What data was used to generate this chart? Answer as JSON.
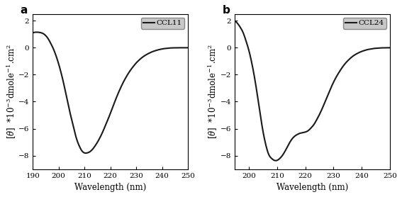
{
  "panel_a": {
    "label": "a",
    "legend_label": "CCL11",
    "x_start": 190,
    "x_end": 250,
    "ylim": [
      -9,
      2.5
    ],
    "yticks": [
      -8,
      -6,
      -4,
      -2,
      0,
      2
    ],
    "xticks": [
      190,
      200,
      210,
      220,
      230,
      240,
      250
    ],
    "xlabel": "Wavelength (nm)",
    "curve": {
      "x": [
        190,
        191,
        192,
        193,
        194,
        195,
        196,
        197,
        198,
        199,
        200,
        201,
        202,
        203,
        204,
        205,
        206,
        207,
        208,
        209,
        210,
        211,
        212,
        213,
        214,
        215,
        216,
        217,
        218,
        219,
        220,
        221,
        222,
        223,
        224,
        225,
        226,
        227,
        228,
        229,
        230,
        231,
        232,
        233,
        234,
        235,
        236,
        237,
        238,
        239,
        240,
        241,
        242,
        243,
        244,
        245,
        246,
        247,
        248,
        249,
        250
      ],
      "y": [
        1.1,
        1.15,
        1.15,
        1.12,
        1.05,
        0.9,
        0.65,
        0.3,
        -0.1,
        -0.6,
        -1.2,
        -1.9,
        -2.7,
        -3.6,
        -4.5,
        -5.3,
        -6.1,
        -6.8,
        -7.3,
        -7.65,
        -7.8,
        -7.8,
        -7.72,
        -7.55,
        -7.3,
        -7.0,
        -6.65,
        -6.25,
        -5.8,
        -5.35,
        -4.85,
        -4.35,
        -3.85,
        -3.38,
        -2.95,
        -2.55,
        -2.2,
        -1.88,
        -1.6,
        -1.35,
        -1.12,
        -0.93,
        -0.76,
        -0.62,
        -0.5,
        -0.4,
        -0.31,
        -0.24,
        -0.18,
        -0.13,
        -0.09,
        -0.06,
        -0.04,
        -0.02,
        -0.01,
        -0.005,
        -0.002,
        -0.001,
        0.0,
        0.0,
        0.0
      ]
    }
  },
  "panel_b": {
    "label": "b",
    "legend_label": "CCL24",
    "x_start": 195,
    "x_end": 250,
    "ylim": [
      -9,
      2.5
    ],
    "yticks": [
      -8,
      -6,
      -4,
      -2,
      0,
      2
    ],
    "xticks": [
      200,
      210,
      220,
      230,
      240,
      250
    ],
    "xlabel": "Wavelength (nm)",
    "curve": {
      "x": [
        195,
        196,
        197,
        198,
        199,
        200,
        201,
        202,
        203,
        204,
        205,
        206,
        207,
        208,
        209,
        210,
        211,
        212,
        213,
        214,
        215,
        216,
        217,
        218,
        219,
        220,
        221,
        222,
        223,
        224,
        225,
        226,
        227,
        228,
        229,
        230,
        231,
        232,
        233,
        234,
        235,
        236,
        237,
        238,
        239,
        240,
        241,
        242,
        243,
        244,
        245,
        246,
        247,
        248,
        249,
        250
      ],
      "y": [
        2.0,
        1.8,
        1.5,
        1.1,
        0.5,
        -0.2,
        -1.1,
        -2.2,
        -3.5,
        -4.9,
        -6.2,
        -7.2,
        -7.9,
        -8.2,
        -8.35,
        -8.35,
        -8.2,
        -7.95,
        -7.6,
        -7.2,
        -6.85,
        -6.6,
        -6.45,
        -6.35,
        -6.3,
        -6.25,
        -6.15,
        -5.95,
        -5.7,
        -5.35,
        -4.95,
        -4.5,
        -4.0,
        -3.5,
        -3.0,
        -2.55,
        -2.15,
        -1.8,
        -1.48,
        -1.2,
        -0.97,
        -0.77,
        -0.6,
        -0.47,
        -0.36,
        -0.27,
        -0.2,
        -0.14,
        -0.1,
        -0.06,
        -0.04,
        -0.02,
        -0.01,
        -0.005,
        0.0,
        0.0
      ]
    }
  },
  "line_color": "#1a1a1a",
  "line_width": 1.5,
  "background_color": "#ffffff",
  "legend_facecolor": "#c8c8c8",
  "legend_edgecolor": "#888888",
  "tick_label_fontsize": 7.5,
  "axis_label_fontsize": 8.5,
  "panel_label_fontsize": 11,
  "ylabel": "[θ]  *10⁻³dmole⁻¹.cm²"
}
